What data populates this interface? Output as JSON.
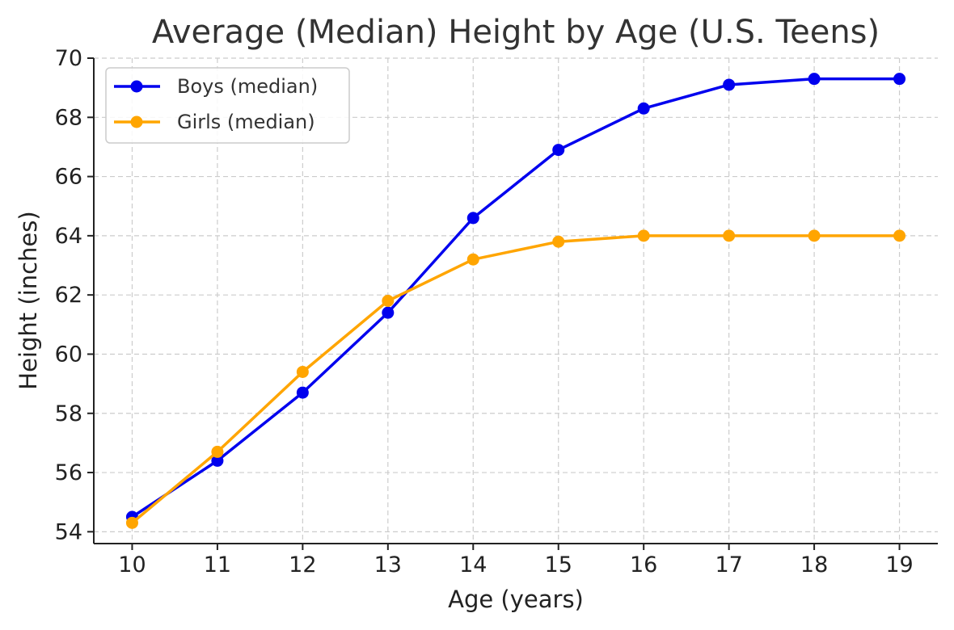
{
  "chart_data": {
    "type": "line",
    "title": "Average (Median) Height by Age (U.S. Teens)",
    "xlabel": "Age (years)",
    "ylabel": "Height (inches)",
    "x": [
      10,
      11,
      12,
      13,
      14,
      15,
      16,
      17,
      18,
      19
    ],
    "xlim": [
      9.55,
      19.45
    ],
    "ylim": [
      53.6,
      70
    ],
    "yticks": [
      54,
      56,
      58,
      60,
      62,
      64,
      66,
      68,
      70
    ],
    "grid": true,
    "legend_position": "top-left",
    "series": [
      {
        "name": "Boys (median)",
        "color": "#0000ee",
        "values": [
          54.5,
          56.4,
          58.7,
          61.4,
          64.6,
          66.9,
          68.3,
          69.1,
          69.3,
          69.3
        ]
      },
      {
        "name": "Girls (median)",
        "color": "#ffa500",
        "values": [
          54.3,
          56.7,
          59.4,
          61.8,
          63.2,
          63.8,
          64.0,
          64.0,
          64.0,
          64.0
        ]
      }
    ]
  }
}
